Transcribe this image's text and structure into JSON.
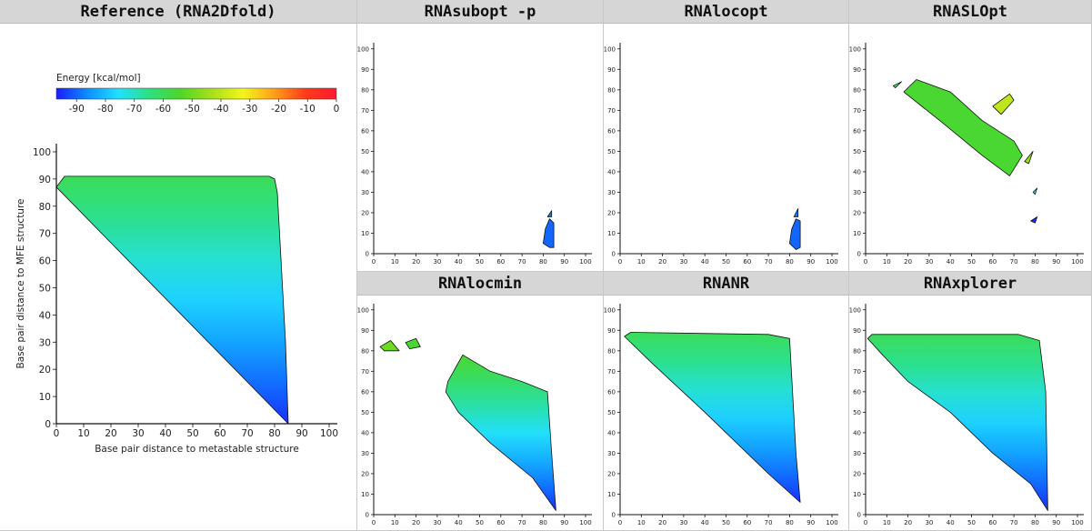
{
  "colorbar": {
    "label": "Energy [kcal/mol]",
    "ticks": [
      -90,
      -80,
      -70,
      -60,
      -50,
      -40,
      -30,
      -20,
      -10,
      0
    ],
    "range": [
      -97,
      0
    ],
    "gradient_colors": [
      "#1a1aff",
      "#0d8fff",
      "#22e0ff",
      "#2de07f",
      "#4fd628",
      "#a8e01a",
      "#f4f51a",
      "#ff9f1a",
      "#ff3a1a",
      "#ff1a2e"
    ]
  },
  "panels": [
    {
      "id": "reference",
      "title": "Reference (RNA2Dfold)"
    },
    {
      "id": "subopt",
      "title": "RNAsubopt -p"
    },
    {
      "id": "locopt",
      "title": "RNAlocopt"
    },
    {
      "id": "slopt",
      "title": "RNASLOpt"
    },
    {
      "id": "locmin",
      "title": "RNAlocmin"
    },
    {
      "id": "nr",
      "title": "RNANR"
    },
    {
      "id": "xplorer",
      "title": "RNAxplorer"
    }
  ],
  "chart_data": [
    {
      "type": "heatmap",
      "title": "Reference (RNA2Dfold)",
      "xlabel": "Base pair distance to metastable structure",
      "ylabel": "Base pair distance to MFE structure",
      "xlim": [
        0,
        103
      ],
      "ylim": [
        0,
        103
      ],
      "xticks": [
        0,
        10,
        20,
        30,
        40,
        50,
        60,
        70,
        80,
        90,
        100
      ],
      "yticks": [
        0,
        10,
        20,
        30,
        40,
        50,
        60,
        70,
        80,
        90,
        100
      ],
      "regions": [
        {
          "points": [
            [
              0,
              87
            ],
            [
              3,
              91
            ],
            [
              78,
              91
            ],
            [
              80,
              90
            ],
            [
              81,
              85
            ],
            [
              84,
              30
            ],
            [
              85,
              0
            ]
          ],
          "energy_top": -60,
          "energy_bottom": -95
        }
      ],
      "grid": false,
      "colorbar": "top"
    },
    {
      "type": "heatmap",
      "title": "RNAsubopt -p",
      "xlim": [
        0,
        103
      ],
      "ylim": [
        0,
        103
      ],
      "xticks": [
        0,
        10,
        20,
        30,
        40,
        50,
        60,
        70,
        80,
        90,
        100
      ],
      "yticks": [
        0,
        10,
        20,
        30,
        40,
        50,
        60,
        70,
        80,
        90,
        100
      ],
      "regions": [
        {
          "points": [
            [
              80,
              5
            ],
            [
              83,
              3
            ],
            [
              85,
              3
            ],
            [
              85,
              15
            ],
            [
              83,
              17
            ],
            [
              81,
              12
            ]
          ],
          "energy": -90
        },
        {
          "points": [
            [
              82,
              18
            ],
            [
              84,
              21
            ],
            [
              84,
              18
            ]
          ],
          "energy": -88
        }
      ]
    },
    {
      "type": "heatmap",
      "title": "RNAlocopt",
      "xlim": [
        0,
        103
      ],
      "ylim": [
        0,
        103
      ],
      "xticks": [
        0,
        10,
        20,
        30,
        40,
        50,
        60,
        70,
        80,
        90,
        100
      ],
      "yticks": [
        0,
        10,
        20,
        30,
        40,
        50,
        60,
        70,
        80,
        90,
        100
      ],
      "regions": [
        {
          "points": [
            [
              80,
              5
            ],
            [
              83,
              2
            ],
            [
              85,
              3
            ],
            [
              85,
              16
            ],
            [
              83,
              17
            ],
            [
              81,
              12
            ]
          ],
          "energy": -90
        },
        {
          "points": [
            [
              82,
              18
            ],
            [
              84,
              22
            ],
            [
              84,
              18
            ]
          ],
          "energy": -88
        }
      ]
    },
    {
      "type": "heatmap",
      "title": "RNASLOpt",
      "xlim": [
        0,
        103
      ],
      "ylim": [
        0,
        103
      ],
      "xticks": [
        0,
        10,
        20,
        30,
        40,
        50,
        60,
        70,
        80,
        90,
        100
      ],
      "yticks": [
        0,
        10,
        20,
        30,
        40,
        50,
        60,
        70,
        80,
        90,
        100
      ],
      "regions": [
        {
          "points": [
            [
              18,
              79
            ],
            [
              24,
              85
            ],
            [
              40,
              79
            ],
            [
              55,
              65
            ],
            [
              70,
              55
            ],
            [
              74,
              48
            ],
            [
              68,
              38
            ],
            [
              55,
              48
            ],
            [
              35,
              65
            ]
          ],
          "energy": -55
        },
        {
          "points": [
            [
              13,
              82
            ],
            [
              17,
              84
            ],
            [
              14,
              81
            ]
          ],
          "energy": -60
        },
        {
          "points": [
            [
              60,
              72
            ],
            [
              68,
              78
            ],
            [
              70,
              75
            ],
            [
              64,
              68
            ]
          ],
          "energy": -40
        },
        {
          "points": [
            [
              75,
              45
            ],
            [
              79,
              50
            ],
            [
              77,
              44
            ]
          ],
          "energy": -45
        },
        {
          "points": [
            [
              79,
              30
            ],
            [
              81,
              32
            ],
            [
              80,
              29
            ]
          ],
          "energy": -75
        },
        {
          "points": [
            [
              78,
              16
            ],
            [
              81,
              18
            ],
            [
              80,
              15
            ]
          ],
          "energy": -95
        }
      ]
    },
    {
      "type": "heatmap",
      "title": "RNAlocmin",
      "xlim": [
        0,
        103
      ],
      "ylim": [
        0,
        103
      ],
      "xticks": [
        0,
        10,
        20,
        30,
        40,
        50,
        60,
        70,
        80,
        90,
        100
      ],
      "yticks": [
        0,
        10,
        20,
        30,
        40,
        50,
        60,
        70,
        80,
        90,
        100
      ],
      "regions": [
        {
          "points": [
            [
              35,
              65
            ],
            [
              42,
              78
            ],
            [
              55,
              70
            ],
            [
              70,
              65
            ],
            [
              82,
              60
            ],
            [
              84,
              30
            ],
            [
              86,
              2
            ],
            [
              75,
              18
            ],
            [
              55,
              35
            ],
            [
              40,
              50
            ],
            [
              34,
              60
            ]
          ],
          "energy_top": -55,
          "energy_bottom": -95
        },
        {
          "points": [
            [
              3,
              82
            ],
            [
              8,
              85
            ],
            [
              12,
              80
            ],
            [
              5,
              80
            ]
          ],
          "energy": -50
        },
        {
          "points": [
            [
              15,
              84
            ],
            [
              20,
              86
            ],
            [
              22,
              82
            ],
            [
              17,
              81
            ]
          ],
          "energy": -55
        }
      ]
    },
    {
      "type": "heatmap",
      "title": "RNANR",
      "xlim": [
        0,
        103
      ],
      "ylim": [
        0,
        103
      ],
      "xticks": [
        0,
        10,
        20,
        30,
        40,
        50,
        60,
        70,
        80,
        90,
        100
      ],
      "yticks": [
        0,
        10,
        20,
        30,
        40,
        50,
        60,
        70,
        80,
        90,
        100
      ],
      "regions": [
        {
          "points": [
            [
              2,
              87
            ],
            [
              5,
              89
            ],
            [
              70,
              88
            ],
            [
              80,
              86
            ],
            [
              83,
              30
            ],
            [
              85,
              6
            ],
            [
              70,
              20
            ],
            [
              40,
              50
            ],
            [
              15,
              74
            ]
          ],
          "energy_top": -60,
          "energy_bottom": -95
        }
      ]
    },
    {
      "type": "heatmap",
      "title": "RNAxplorer",
      "xlim": [
        0,
        103
      ],
      "ylim": [
        0,
        103
      ],
      "xticks": [
        0,
        10,
        20,
        30,
        40,
        50,
        60,
        70,
        80,
        90,
        100
      ],
      "yticks": [
        0,
        10,
        20,
        30,
        40,
        50,
        60,
        70,
        80,
        90,
        100
      ],
      "regions": [
        {
          "points": [
            [
              1,
              86
            ],
            [
              3,
              88
            ],
            [
              72,
              88
            ],
            [
              82,
              85
            ],
            [
              85,
              60
            ],
            [
              86,
              2
            ],
            [
              78,
              15
            ],
            [
              60,
              30
            ],
            [
              40,
              50
            ],
            [
              20,
              65
            ],
            [
              8,
              78
            ]
          ],
          "energy_top": -60,
          "energy_bottom": -95
        }
      ]
    }
  ]
}
